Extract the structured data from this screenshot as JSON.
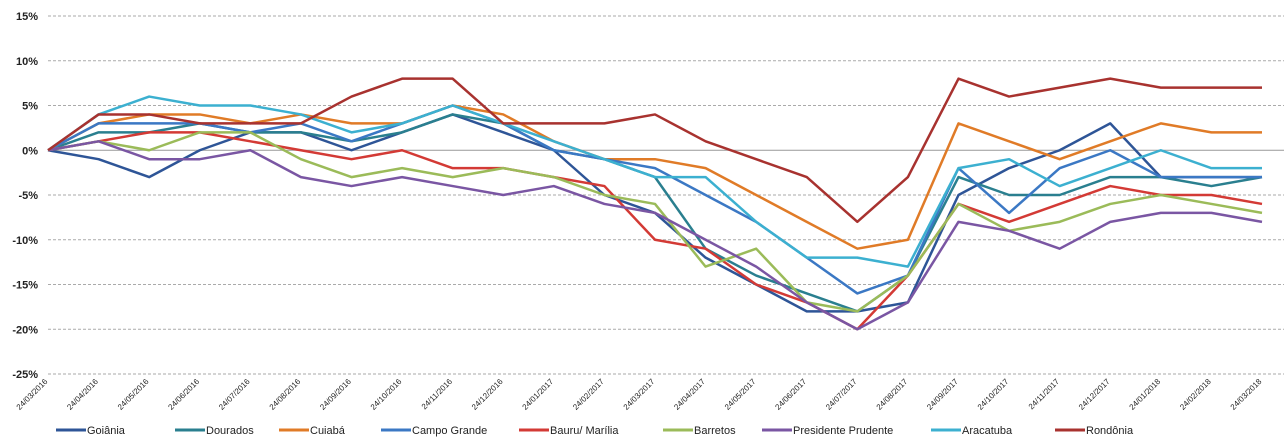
{
  "chart_data": {
    "type": "line",
    "categories": [
      "24/03/2016",
      "24/04/2016",
      "24/05/2016",
      "24/06/2016",
      "24/07/2016",
      "24/08/2016",
      "24/09/2016",
      "24/10/2016",
      "24/11/2016",
      "24/12/2016",
      "24/01/2017",
      "24/02/2017",
      "24/03/2017",
      "24/04/2017",
      "24/05/2017",
      "24/06/2017",
      "24/07/2017",
      "24/08/2017",
      "24/09/2017",
      "24/10/2017",
      "24/11/2017",
      "24/12/2017",
      "24/01/2018",
      "24/02/2018",
      "24/03/2018"
    ],
    "series": [
      {
        "name": "Goiânia",
        "color": "#2e5597",
        "values": [
          0,
          -1,
          -3,
          0,
          2,
          2,
          0,
          2,
          4,
          2,
          0,
          -5,
          -7,
          -12,
          -15,
          -18,
          -18,
          -17,
          -5,
          -2,
          0,
          3,
          -3,
          -3,
          -3
        ]
      },
      {
        "name": "Dourados",
        "color": "#2a7f8f",
        "values": [
          0,
          2,
          2,
          3,
          2,
          2,
          1,
          2,
          4,
          3,
          0,
          -1,
          -3,
          -11,
          -14,
          -16,
          -18,
          -14,
          -3,
          -5,
          -5,
          -3,
          -3,
          -4,
          -3
        ]
      },
      {
        "name": "Cuiabá",
        "color": "#e07b27",
        "values": [
          0,
          3,
          4,
          4,
          3,
          4,
          3,
          3,
          5,
          4,
          1,
          -1,
          -1,
          -2,
          -5,
          -8,
          -11,
          -10,
          3,
          1,
          -1,
          1,
          3,
          2,
          2
        ]
      },
      {
        "name": "Campo Grande",
        "color": "#3b78c4",
        "values": [
          0,
          3,
          3,
          3,
          2,
          3,
          1,
          3,
          5,
          3,
          0,
          -1,
          -2,
          -5,
          -8,
          -12,
          -16,
          -14,
          -2,
          -7,
          -2,
          0,
          -3,
          -3,
          -3
        ]
      },
      {
        "name": "Bauru/ Marília",
        "color": "#d33a35",
        "values": [
          0,
          1,
          2,
          2,
          1,
          0,
          -1,
          0,
          -2,
          -2,
          -3,
          -4,
          -10,
          -11,
          -15,
          -17,
          -20,
          -14,
          -6,
          -8,
          -6,
          -4,
          -5,
          -5,
          -6
        ]
      },
      {
        "name": "Barretos",
        "color": "#9bbb59",
        "values": [
          0,
          1,
          0,
          2,
          2,
          -1,
          -3,
          -2,
          -3,
          -2,
          -3,
          -5,
          -6,
          -13,
          -11,
          -17,
          -18,
          -14,
          -6,
          -9,
          -8,
          -6,
          -5,
          -6,
          -7
        ]
      },
      {
        "name": "Presidente Prudente",
        "color": "#7a56a3",
        "values": [
          0,
          1,
          -1,
          -1,
          0,
          -3,
          -4,
          -3,
          -4,
          -5,
          -4,
          -6,
          -7,
          -10,
          -13,
          -17,
          -20,
          -17,
          -8,
          -9,
          -11,
          -8,
          -7,
          -7,
          -8
        ]
      },
      {
        "name": "Aracatuba",
        "color": "#3cb0d0",
        "values": [
          0,
          4,
          6,
          5,
          5,
          4,
          2,
          3,
          5,
          3,
          1,
          -1,
          -3,
          -3,
          -8,
          -12,
          -12,
          -13,
          -2,
          -1,
          -4,
          -2,
          0,
          -2,
          -2
        ]
      },
      {
        "name": "Rondônia",
        "color": "#a8322f",
        "values": [
          0,
          4,
          4,
          3,
          3,
          3,
          6,
          8,
          8,
          3,
          3,
          3,
          4,
          1,
          -1,
          -3,
          -8,
          -3,
          8,
          6,
          7,
          8,
          7,
          7,
          7
        ]
      }
    ],
    "ylim": [
      -25,
      15
    ],
    "yticks": [
      {
        "value": -25,
        "label": "-25%"
      },
      {
        "value": -20,
        "label": "-20%"
      },
      {
        "value": -15,
        "label": "-15%"
      },
      {
        "value": -10,
        "label": "-10%"
      },
      {
        "value": -5,
        "label": "-5%"
      },
      {
        "value": 0,
        "label": "0%"
      },
      {
        "value": 5,
        "label": "5%"
      },
      {
        "value": 10,
        "label": "10%"
      },
      {
        "value": 15,
        "label": "15%"
      }
    ],
    "grid": true,
    "legend": "bottom"
  }
}
